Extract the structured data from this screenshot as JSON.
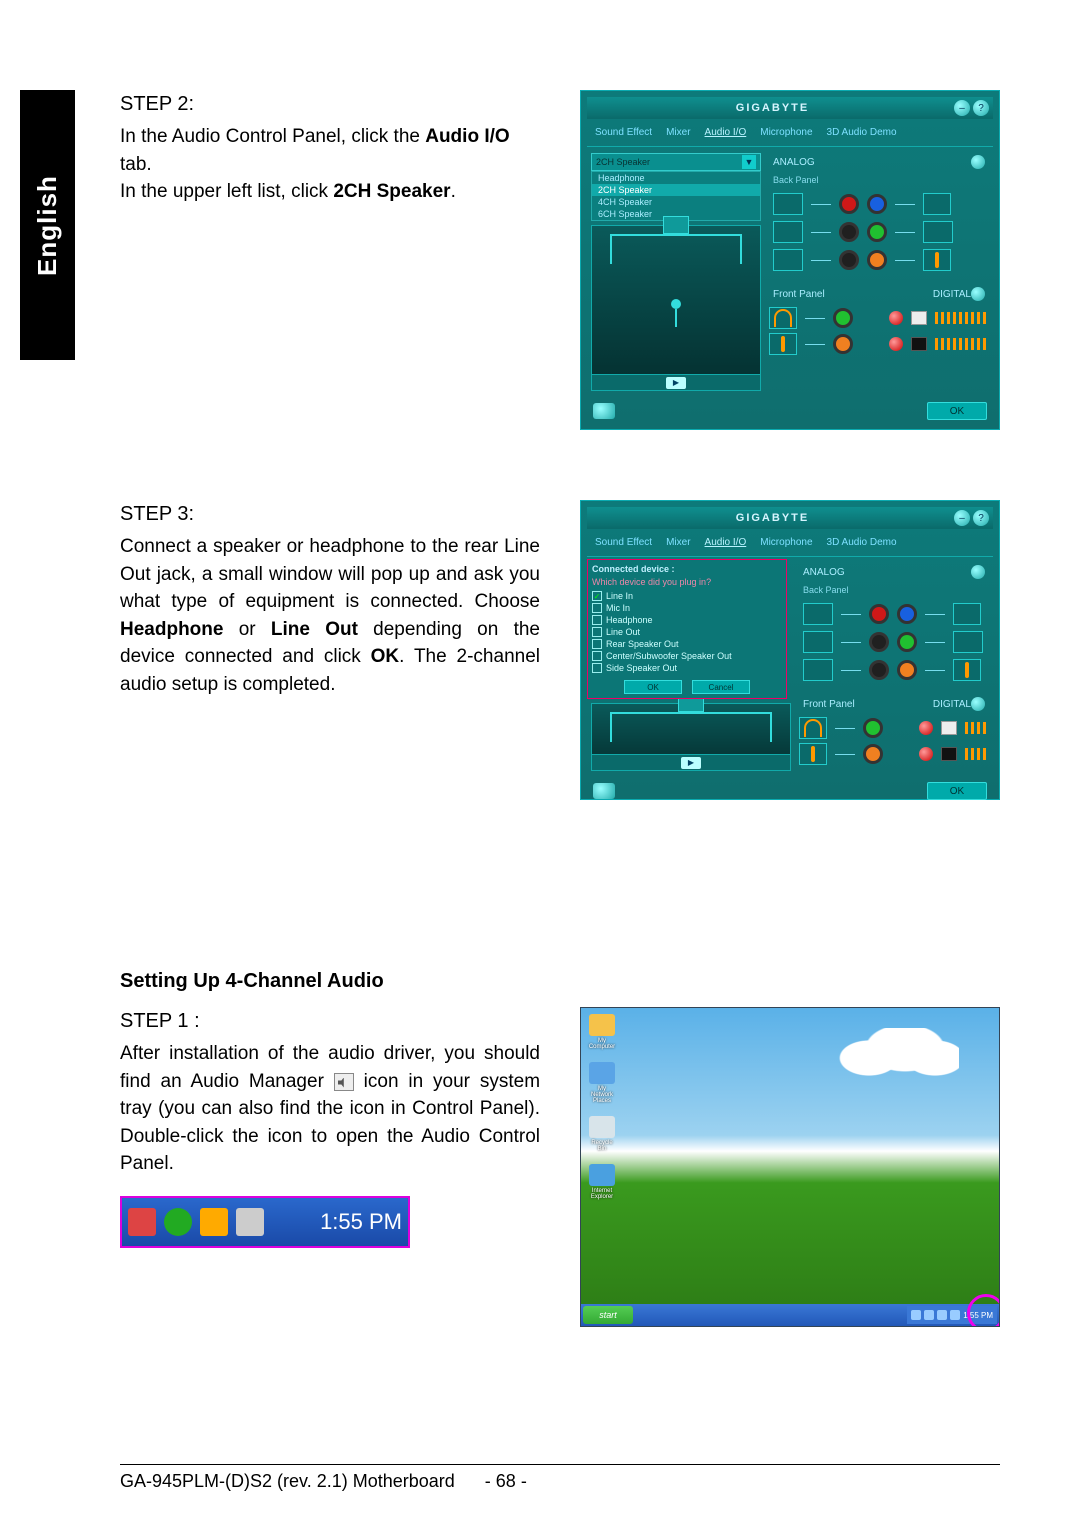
{
  "language_tab": "English",
  "step2": {
    "title": "STEP 2:",
    "line1a": "In the Audio Control Panel, click the ",
    "line1b": "Audio I/O",
    "line1c": " tab.",
    "line2a": "In the upper left list, click ",
    "line2b": "2CH Speaker",
    "line2c": "."
  },
  "step3": {
    "title": "STEP 3:",
    "body1": "Connect a speaker or headphone to the rear Line Out jack, a small window will pop up and ask you what type of equipment is connected. Choose ",
    "bold1": "Headphone",
    "mid1": " or ",
    "bold2": "Line Out",
    "mid2": " depending on the device connected and click ",
    "bold3": "OK",
    "tail": ". The 2-channel audio setup is completed."
  },
  "section_heading": "Setting Up 4-Channel Audio",
  "step1": {
    "title": "STEP 1 :",
    "body1": "After installation of the audio driver, you should find an Audio Manager",
    "body2": " icon in your system tray (you can also find the icon in Control Panel). Double-click the icon to open the Audio Control Panel."
  },
  "systray_time": "1:55 PM",
  "panel": {
    "brand": "GIGABYTE",
    "tabs": [
      "Sound Effect",
      "Mixer",
      "Audio I/O",
      "Microphone",
      "3D Audio Demo"
    ],
    "active_tab_index": 2,
    "dropdown_selected": "2CH Speaker",
    "dd_items": [
      "Headphone",
      "2CH Speaker",
      "4CH Speaker",
      "6CH Speaker"
    ],
    "analog": "ANALOG",
    "back_panel": "Back Panel",
    "front_panel": "Front Panel",
    "digital": "DIGITAL",
    "ok": "OK",
    "jack_colors_back": [
      "#d01818",
      "#1860e0",
      "#202020",
      "#20c030",
      "#202020",
      "#f08020"
    ],
    "front_jack_colors": [
      "#20c030",
      "#f08020"
    ],
    "bg": "#0d7676"
  },
  "popup": {
    "header": "Connected device :",
    "question": "Which device did you plug in?",
    "options": [
      "Line In",
      "Mic In",
      "Headphone",
      "Line Out",
      "Rear Speaker Out",
      "Center/Subwoofer Speaker Out",
      "Side Speaker Out"
    ],
    "checked_index": 0,
    "ok": "OK",
    "cancel": "Cancel"
  },
  "desktop": {
    "icons": [
      {
        "label": "My Computer",
        "color": "#f5c24a"
      },
      {
        "label": "My Network Places",
        "color": "#5aa4e6"
      },
      {
        "label": "Recycle Bin",
        "color": "#d8e4ea"
      },
      {
        "label": "Internet Explorer",
        "color": "#4aa0e0"
      }
    ],
    "start": "start",
    "clock": "1:55 PM"
  },
  "footer": {
    "model": "GA-945PLM-(D)S2 (rev. 2.1) Motherboard",
    "page": "- 68 -"
  }
}
